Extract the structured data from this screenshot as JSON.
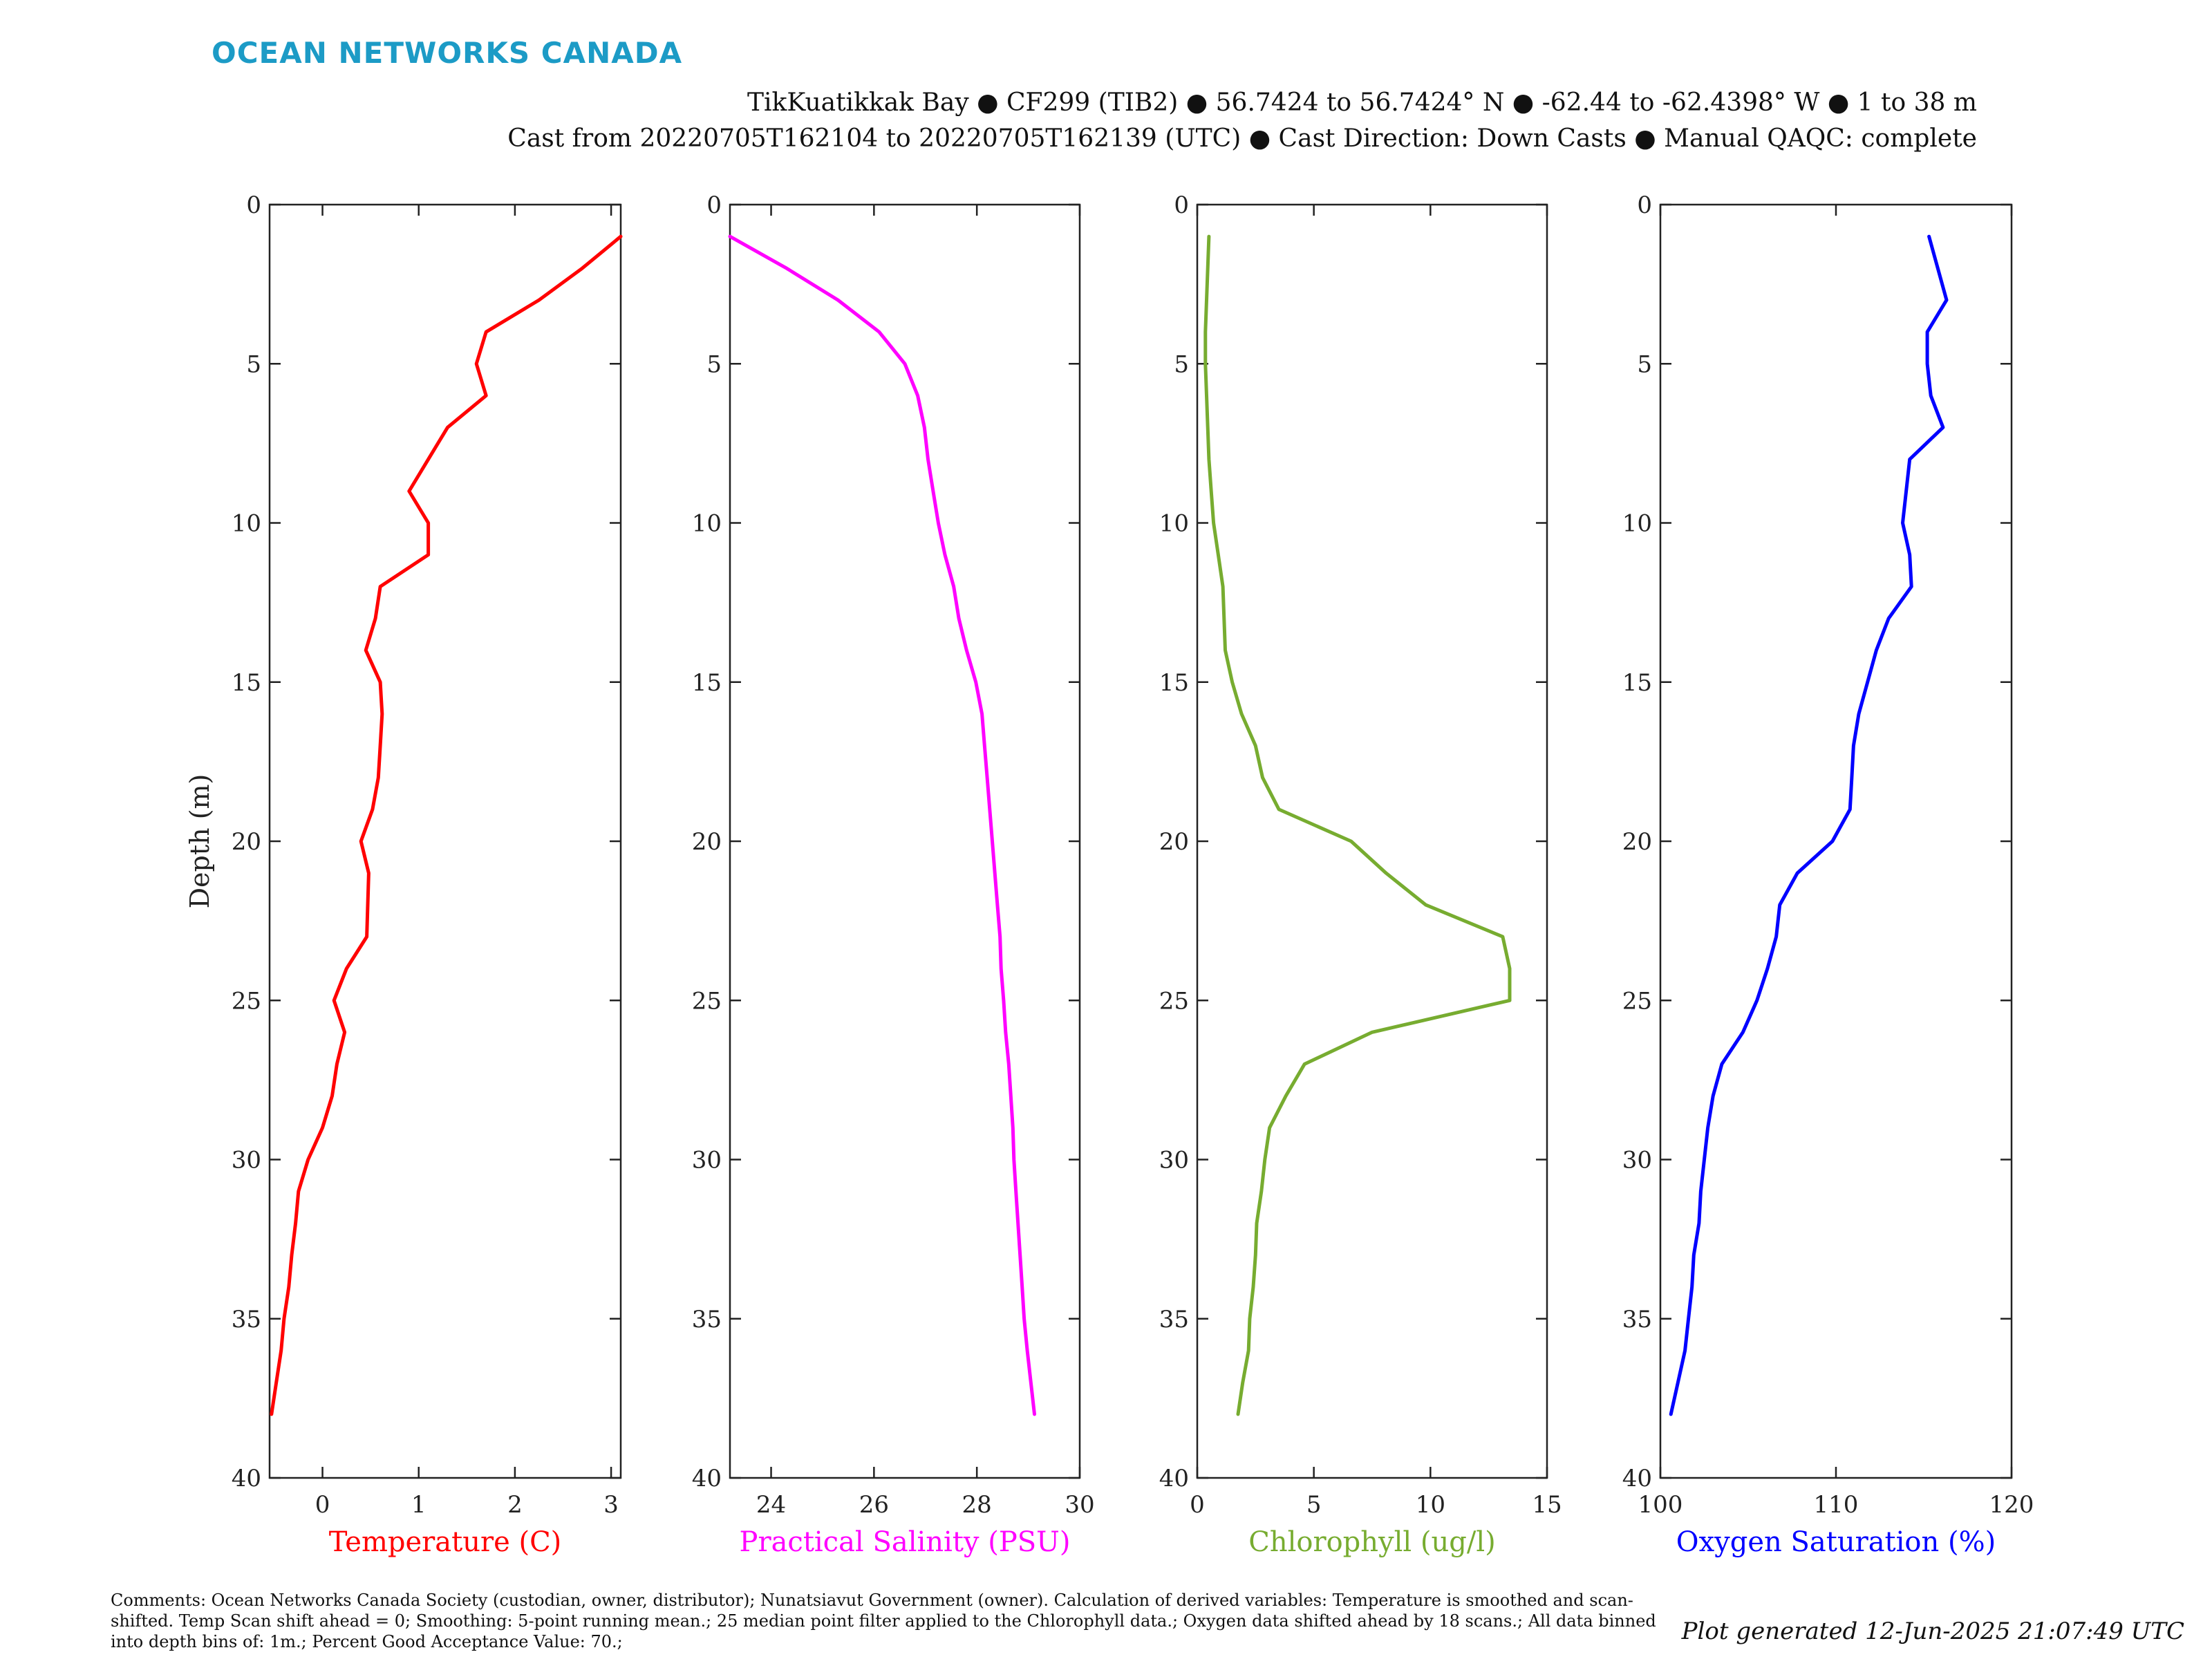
{
  "brand": "OCEAN NETWORKS CANADA",
  "header": {
    "line1": "TikKuatikkak Bay ● CF299 (TIB2) ● 56.7424 to 56.7424° N ● -62.44 to -62.4398° W ● 1 to 38 m",
    "line2": "Cast from 20220705T162104 to 20220705T162139 (UTC) ● Cast Direction: Down Casts ● Manual QAQC: complete"
  },
  "comments": "Comments: Ocean Networks Canada Society (custodian, owner, distributor); Nunatsiavut Government (owner). Calculation of derived variables: Temperature is smoothed and scan-shifted. Temp Scan shift ahead = 0; Smoothing: 5-point running mean.; 25 median point filter applied to the Chlorophyll data.; Oxygen data shifted ahead by 18 scans.; All data binned into depth bins of: 1m.; Percent Good Acceptance Value: 70.;",
  "generated": "Plot generated 12-Jun-2025 21:07:49 UTC",
  "chart_data": [
    {
      "type": "line",
      "xlabel": "Temperature (C)",
      "ylabel": "Depth (m)",
      "color": "#ff0000",
      "xlim": [
        -0.55,
        3.1
      ],
      "ylim": [
        0,
        40
      ],
      "y_reversed": true,
      "xticks": [
        0,
        1,
        2,
        3
      ],
      "yticks": [
        0,
        5,
        10,
        15,
        20,
        25,
        30,
        35,
        40
      ],
      "depth": [
        1,
        2,
        3,
        4,
        5,
        6,
        7,
        8,
        9,
        10,
        11,
        12,
        13,
        14,
        15,
        16,
        17,
        18,
        19,
        20,
        21,
        22,
        23,
        24,
        25,
        26,
        27,
        28,
        29,
        30,
        31,
        32,
        33,
        34,
        35,
        36,
        37,
        38
      ],
      "values": [
        3.1,
        2.7,
        2.25,
        1.7,
        1.6,
        1.7,
        1.3,
        1.1,
        0.9,
        1.1,
        1.1,
        0.6,
        0.55,
        0.45,
        0.6,
        0.62,
        0.6,
        0.58,
        0.52,
        0.4,
        0.48,
        0.47,
        0.46,
        0.25,
        0.12,
        0.23,
        0.15,
        0.1,
        0.0,
        -0.15,
        -0.25,
        -0.28,
        -0.32,
        -0.35,
        -0.4,
        -0.43,
        -0.48,
        -0.53
      ]
    },
    {
      "type": "line",
      "xlabel": "Practical Salinity (PSU)",
      "color": "#ff00ff",
      "xlim": [
        23.2,
        30
      ],
      "ylim": [
        0,
        40
      ],
      "y_reversed": true,
      "xticks": [
        24,
        26,
        28,
        30
      ],
      "yticks": [
        0,
        5,
        10,
        15,
        20,
        25,
        30,
        35,
        40
      ],
      "depth": [
        1,
        2,
        3,
        4,
        5,
        6,
        7,
        8,
        9,
        10,
        11,
        12,
        13,
        14,
        15,
        16,
        17,
        18,
        19,
        20,
        21,
        22,
        23,
        24,
        25,
        26,
        27,
        28,
        29,
        30,
        31,
        32,
        33,
        34,
        35,
        36,
        37,
        38
      ],
      "values": [
        23.2,
        24.3,
        25.3,
        26.1,
        26.6,
        26.85,
        26.98,
        27.05,
        27.15,
        27.25,
        27.38,
        27.55,
        27.65,
        27.8,
        27.98,
        28.1,
        28.15,
        28.2,
        28.25,
        28.3,
        28.35,
        28.4,
        28.45,
        28.47,
        28.52,
        28.56,
        28.62,
        28.66,
        28.7,
        28.72,
        28.76,
        28.8,
        28.84,
        28.88,
        28.92,
        28.98,
        29.05,
        29.12
      ]
    },
    {
      "type": "line",
      "xlabel": "Chlorophyll (ug/l)",
      "color": "#77ac30",
      "xlim": [
        0,
        15
      ],
      "ylim": [
        0,
        40
      ],
      "y_reversed": true,
      "xticks": [
        0,
        5,
        10,
        15
      ],
      "yticks": [
        0,
        5,
        10,
        15,
        20,
        25,
        30,
        35,
        40
      ],
      "depth": [
        1,
        2,
        3,
        4,
        5,
        6,
        7,
        8,
        9,
        10,
        11,
        12,
        13,
        14,
        15,
        16,
        17,
        18,
        19,
        20,
        21,
        22,
        23,
        24,
        25,
        26,
        27,
        28,
        29,
        30,
        31,
        32,
        33,
        34,
        35,
        36,
        37,
        38
      ],
      "values": [
        0.5,
        0.45,
        0.4,
        0.35,
        0.35,
        0.4,
        0.45,
        0.5,
        0.6,
        0.7,
        0.9,
        1.1,
        1.15,
        1.2,
        1.5,
        1.9,
        2.5,
        2.8,
        3.5,
        6.6,
        8.1,
        9.8,
        13.1,
        13.4,
        13.4,
        7.5,
        4.6,
        3.8,
        3.1,
        2.9,
        2.75,
        2.55,
        2.5,
        2.4,
        2.25,
        2.2,
        1.95,
        1.75
      ]
    },
    {
      "type": "line",
      "xlabel": "Oxygen Saturation (%)",
      "color": "#0000ff",
      "xlim": [
        100,
        120
      ],
      "ylim": [
        0,
        40
      ],
      "y_reversed": true,
      "xticks": [
        100,
        110,
        120
      ],
      "yticks": [
        0,
        5,
        10,
        15,
        20,
        25,
        30,
        35,
        40
      ],
      "depth": [
        1,
        2,
        3,
        4,
        5,
        6,
        7,
        8,
        9,
        10,
        11,
        12,
        13,
        14,
        15,
        16,
        17,
        18,
        19,
        20,
        21,
        22,
        23,
        24,
        25,
        26,
        27,
        28,
        29,
        30,
        31,
        32,
        33,
        34,
        35,
        36,
        37,
        38
      ],
      "values": [
        115.3,
        115.8,
        116.3,
        115.2,
        115.2,
        115.4,
        116.1,
        114.2,
        114.0,
        113.8,
        114.2,
        114.3,
        113.0,
        112.3,
        111.8,
        111.3,
        111.0,
        110.9,
        110.8,
        109.8,
        107.8,
        106.8,
        106.6,
        106.1,
        105.5,
        104.7,
        103.5,
        103.0,
        102.7,
        102.5,
        102.3,
        102.2,
        101.9,
        101.8,
        101.6,
        101.4,
        101.0,
        100.6
      ]
    }
  ]
}
